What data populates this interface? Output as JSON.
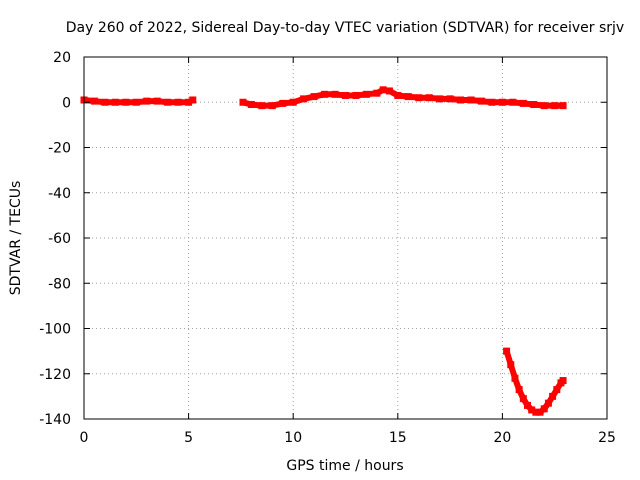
{
  "chart_data": {
    "type": "scatter",
    "title": "Day 260 of 2022, Sidereal Day-to-day VTEC variation (SDTVAR) for receiver srjv",
    "xlabel": "GPS time / hours",
    "ylabel": "SDTVAR / TECUs",
    "xlim": [
      0,
      25
    ],
    "ylim": [
      -140,
      20
    ],
    "xticks": [
      0,
      5,
      10,
      15,
      20,
      25
    ],
    "yticks": [
      20,
      0,
      -20,
      -40,
      -60,
      -80,
      -100,
      -120,
      -140
    ],
    "grid": true,
    "series_color": "#ff0000",
    "series": [
      {
        "x": [
          0.0,
          0.5,
          1.0,
          1.5,
          2.0,
          2.5,
          3.0,
          3.5,
          4.0,
          4.5,
          5.0,
          5.2
        ],
        "y": [
          1.0,
          0.5,
          0.0,
          0.0,
          0.0,
          0.0,
          0.5,
          0.5,
          0.0,
          0.0,
          0.0,
          1.0
        ]
      },
      {
        "x": [
          7.6,
          8.0,
          8.5,
          9.0,
          9.5,
          10.0,
          10.5,
          11.0,
          11.5,
          12.0,
          12.5,
          13.0,
          13.5,
          14.0,
          14.3,
          14.6,
          15.0,
          15.5,
          16.0,
          16.5,
          17.0,
          17.5,
          18.0,
          18.5,
          19.0,
          19.5,
          20.0,
          20.5,
          21.0,
          21.5,
          22.0,
          22.5,
          22.9
        ],
        "y": [
          0.0,
          -1.0,
          -1.5,
          -1.5,
          -0.5,
          0.0,
          1.5,
          2.5,
          3.5,
          3.5,
          3.0,
          3.0,
          3.5,
          4.0,
          5.5,
          5.0,
          3.0,
          2.5,
          2.0,
          2.0,
          1.5,
          1.5,
          1.0,
          1.0,
          0.5,
          0.0,
          0.0,
          0.0,
          -0.5,
          -1.0,
          -1.5,
          -1.5,
          -1.5
        ]
      },
      {
        "x": [
          20.2,
          20.4,
          20.6,
          20.8,
          21.0,
          21.2,
          21.4,
          21.6,
          21.8,
          22.0,
          22.2,
          22.4,
          22.6,
          22.8,
          22.9
        ],
        "y": [
          -110,
          -116,
          -122,
          -127,
          -131,
          -134,
          -136,
          -137,
          -137,
          -135.5,
          -133,
          -130,
          -127,
          -124,
          -123
        ]
      }
    ]
  }
}
